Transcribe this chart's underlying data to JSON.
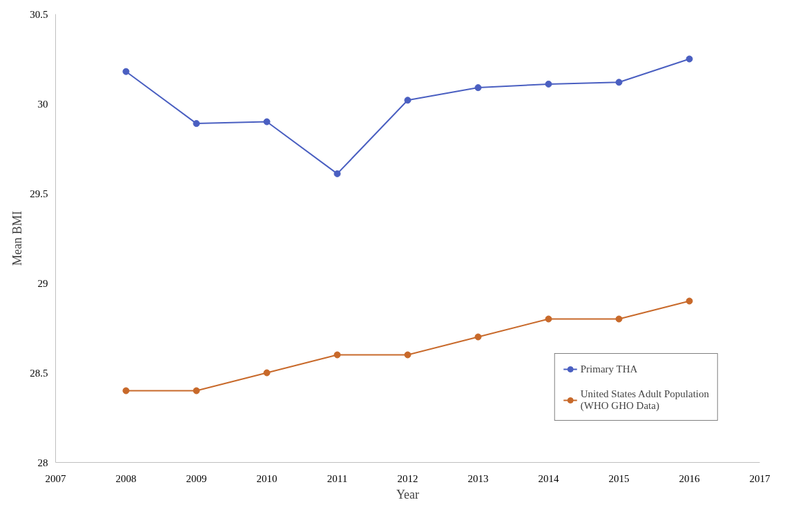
{
  "chart_data": {
    "type": "line",
    "xlabel": "Year",
    "ylabel": "Mean BMI",
    "x": [
      2008,
      2009,
      2010,
      2011,
      2012,
      2013,
      2014,
      2015,
      2016
    ],
    "series": [
      {
        "name": "Primary THA",
        "color": "#4a5fc1",
        "values": [
          30.18,
          29.89,
          29.9,
          29.61,
          30.02,
          30.09,
          30.11,
          30.12,
          30.25
        ]
      },
      {
        "name": "United States Adult Population\n(WHO GHO Data)",
        "color": "#c8692a",
        "values": [
          28.4,
          28.4,
          28.5,
          28.6,
          28.6,
          28.7,
          28.8,
          28.8,
          28.9
        ]
      }
    ],
    "xlim": [
      2007,
      2017
    ],
    "xticks": [
      2007,
      2008,
      2009,
      2010,
      2011,
      2012,
      2013,
      2014,
      2015,
      2016,
      2017
    ],
    "ylim": [
      28,
      30.5
    ],
    "yticks": [
      28,
      28.5,
      29,
      29.5,
      30,
      30.5
    ],
    "grid": false,
    "legend": "bottom right",
    "marker": "circle",
    "line_style": "solid"
  }
}
